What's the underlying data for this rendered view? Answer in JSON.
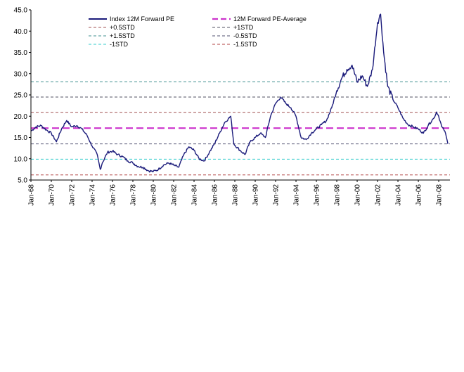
{
  "chart_data": {
    "type": "line",
    "title": "",
    "xlabel": "",
    "ylabel": "",
    "ylim": [
      5.0,
      45.0
    ],
    "yticks": [
      "5.0",
      "10.0",
      "15.0",
      "20.0",
      "25.0",
      "30.0",
      "35.0",
      "40.0",
      "45.0"
    ],
    "xlim": [
      1968.0,
      2009.1
    ],
    "xticks": [
      "Jan-68",
      "Jan-70",
      "Jan-72",
      "Jan-74",
      "Jan-76",
      "Jan-78",
      "Jan-80",
      "Jan-82",
      "Jan-84",
      "Jan-86",
      "Jan-88",
      "Jan-90",
      "Jan-92",
      "Jan-94",
      "Jan-96",
      "Jan-98",
      "Jan-00",
      "Jan-02",
      "Jan-04",
      "Jan-06",
      "Jan-08"
    ],
    "grid": false,
    "legend_position": "top",
    "series": [
      {
        "name": "Index 12M Forward PE",
        "color": "#1a1a7a",
        "style": "solid",
        "x": [
          1968.0,
          1968.5,
          1969.0,
          1969.5,
          1970.0,
          1970.5,
          1971.0,
          1971.5,
          1972.0,
          1972.5,
          1973.0,
          1973.5,
          1974.0,
          1974.5,
          1974.8,
          1975.0,
          1975.5,
          1976.0,
          1976.5,
          1977.0,
          1977.5,
          1978.0,
          1978.5,
          1979.0,
          1979.5,
          1980.0,
          1980.5,
          1981.0,
          1981.5,
          1982.0,
          1982.5,
          1983.0,
          1983.5,
          1984.0,
          1984.5,
          1985.0,
          1985.5,
          1986.0,
          1986.5,
          1987.0,
          1987.6,
          1987.9,
          1988.5,
          1989.0,
          1989.5,
          1990.0,
          1990.5,
          1991.0,
          1991.5,
          1992.0,
          1992.5,
          1993.0,
          1993.5,
          1994.0,
          1994.5,
          1995.0,
          1995.5,
          1996.0,
          1996.5,
          1997.0,
          1997.5,
          1998.0,
          1998.5,
          1999.0,
          1999.5,
          2000.0,
          2000.5,
          2001.0,
          2001.5,
          2002.0,
          2002.3,
          2002.6,
          2003.0,
          2003.5,
          2004.0,
          2004.5,
          2005.0,
          2005.5,
          2006.0,
          2006.5,
          2007.0,
          2007.5,
          2007.8,
          2008.0,
          2008.3,
          2008.6,
          2008.9
        ],
        "y": [
          16.5,
          17.5,
          17.8,
          16.8,
          16.0,
          14.0,
          17.0,
          19.0,
          17.5,
          17.8,
          17.0,
          15.5,
          13.0,
          11.0,
          7.5,
          9.0,
          11.5,
          11.8,
          11.0,
          10.5,
          9.5,
          9.0,
          8.2,
          8.0,
          7.2,
          7.0,
          7.5,
          8.5,
          9.0,
          8.5,
          8.0,
          11.0,
          12.8,
          12.0,
          10.0,
          9.5,
          11.5,
          13.5,
          16.0,
          18.5,
          20.0,
          13.5,
          12.0,
          11.0,
          14.0,
          15.0,
          16.0,
          15.0,
          20.0,
          23.0,
          24.5,
          23.0,
          22.0,
          20.0,
          15.0,
          14.5,
          16.0,
          17.0,
          18.0,
          19.0,
          22.0,
          26.0,
          29.0,
          31.0,
          32.0,
          28.0,
          29.5,
          27.0,
          31.0,
          42.0,
          44.0,
          35.0,
          27.0,
          24.0,
          22.0,
          19.5,
          18.0,
          17.5,
          17.0,
          16.0,
          18.0,
          19.5,
          21.0,
          20.0,
          17.5,
          16.5,
          13.5
        ]
      },
      {
        "name": "12M Forward PE-Average",
        "color": "#cc33cc",
        "style": "dash-thick",
        "value": 17.2
      },
      {
        "name": "+0.5STD",
        "color": "#a05050",
        "style": "dash",
        "value": 20.9
      },
      {
        "name": "+1STD",
        "color": "#505060",
        "style": "dash",
        "value": 24.5
      },
      {
        "name": "+1.5STD",
        "color": "#409090",
        "style": "dash",
        "value": 28.1
      },
      {
        "name": "-0.5STD",
        "color": "#505070",
        "style": "dash",
        "value": 13.5
      },
      {
        "name": "-1STD",
        "color": "#33cccc",
        "style": "dash",
        "value": 9.9
      },
      {
        "name": "-1.5STD",
        "color": "#b04040",
        "style": "dash",
        "value": 6.2
      }
    ]
  }
}
